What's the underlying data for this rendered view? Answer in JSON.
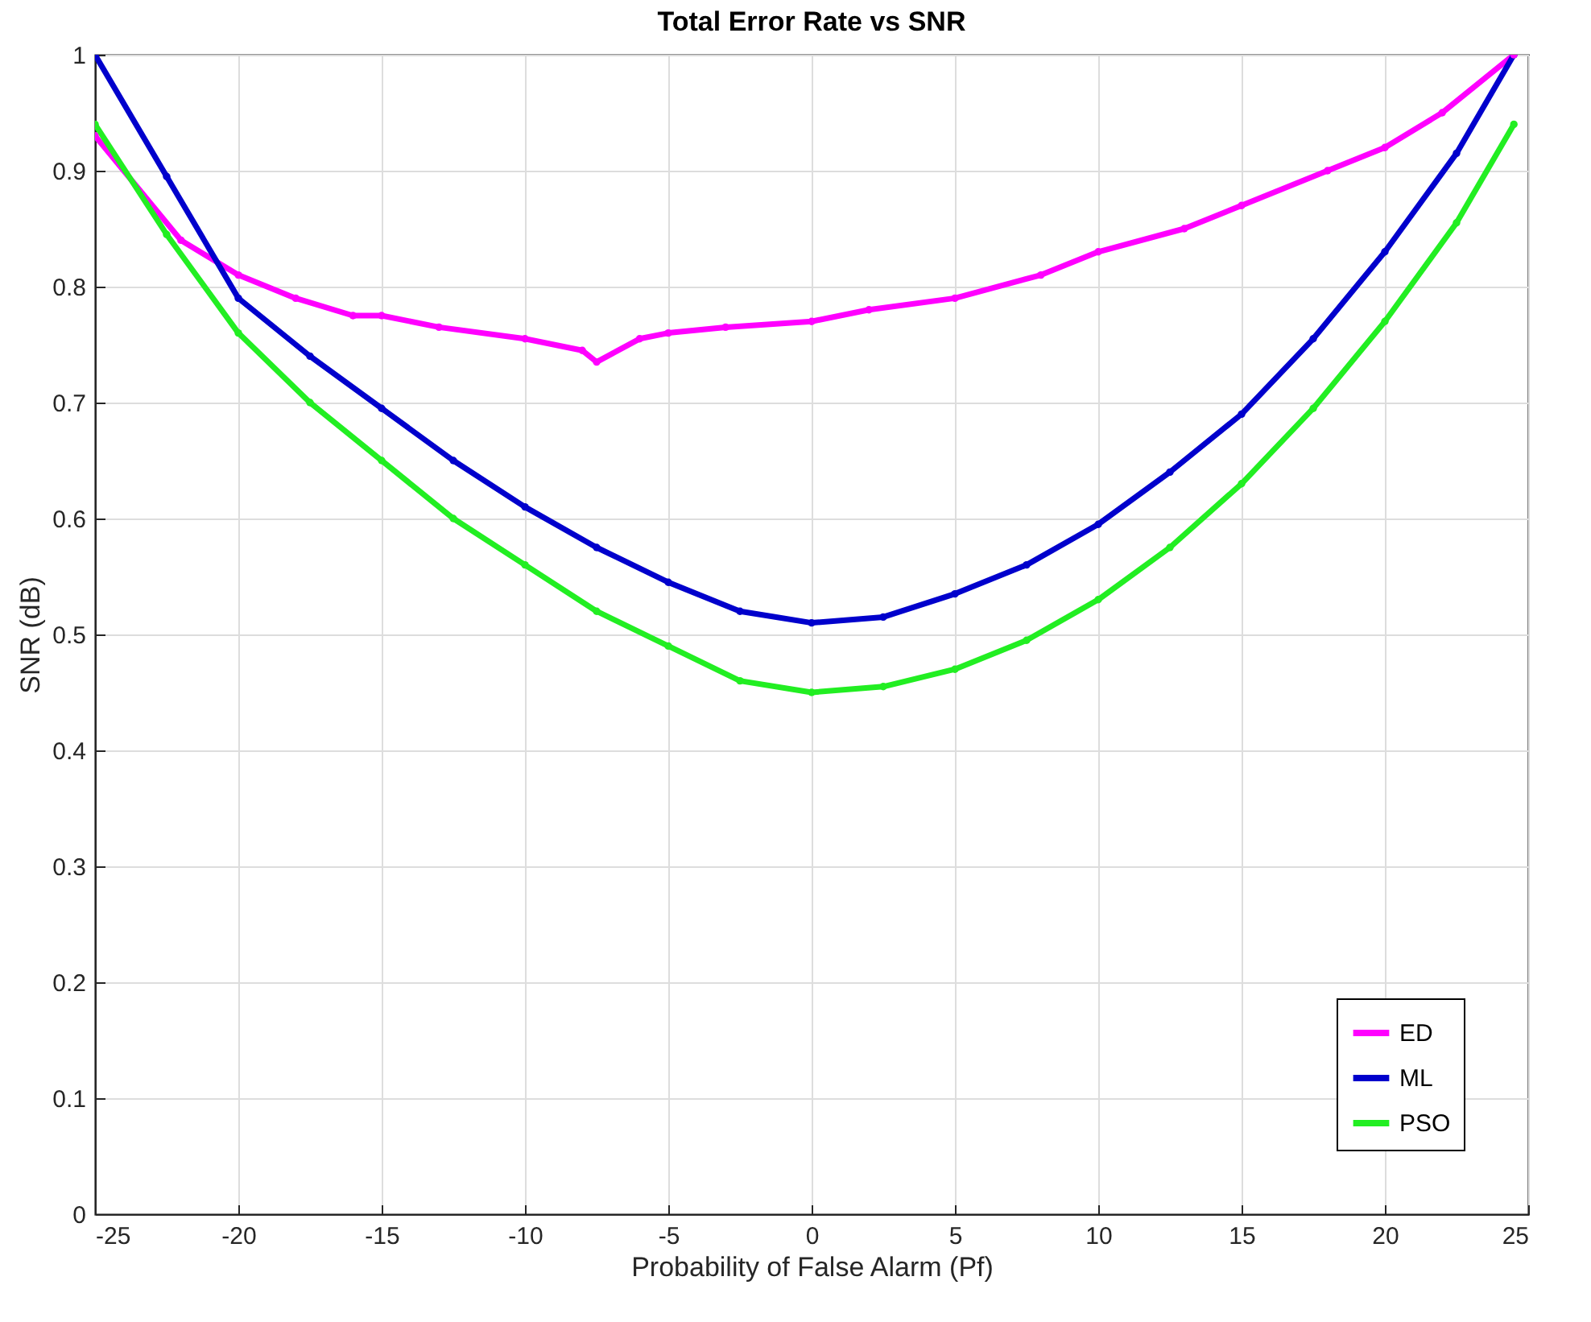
{
  "chart_data": {
    "type": "line",
    "title": "Total Error Rate vs SNR",
    "xlabel": "Probability of False Alarm (Pf)",
    "ylabel": "SNR (dB)",
    "xlim": [
      -25,
      25
    ],
    "xticks": [
      -25,
      -20,
      -15,
      -10,
      -5,
      0,
      5,
      10,
      15,
      20,
      25
    ],
    "ylim": [
      0,
      1
    ],
    "yticks": [
      0,
      0.1,
      0.2,
      0.3,
      0.4,
      0.5,
      0.6,
      0.7,
      0.8,
      0.9,
      1
    ],
    "grid": true,
    "legend": "bottom right",
    "marker": "circle",
    "line_style": "solid",
    "series": [
      {
        "name": "ED",
        "color": "#ff00ff",
        "x": [
          -25,
          -22,
          -20,
          -18,
          -16,
          -15,
          -13,
          -10,
          -8,
          -7.5,
          -6,
          -5,
          -3,
          0,
          2,
          5,
          8,
          10,
          13,
          15,
          18,
          20,
          22,
          24.5
        ],
        "values": [
          0.93,
          0.84,
          0.81,
          0.79,
          0.775,
          0.775,
          0.765,
          0.755,
          0.745,
          0.735,
          0.755,
          0.76,
          0.765,
          0.77,
          0.78,
          0.79,
          0.81,
          0.83,
          0.85,
          0.87,
          0.9,
          0.92,
          0.95,
          1.0
        ]
      },
      {
        "name": "ML",
        "color": "#0000cc",
        "x": [
          -25,
          -22.5,
          -20,
          -17.5,
          -15,
          -12.5,
          -10,
          -7.5,
          -5,
          -2.5,
          0,
          2.5,
          5,
          7.5,
          10,
          12.5,
          15,
          17.5,
          20,
          22.5,
          24.5
        ],
        "values": [
          1.0,
          0.895,
          0.79,
          0.74,
          0.695,
          0.65,
          0.61,
          0.575,
          0.545,
          0.52,
          0.51,
          0.515,
          0.535,
          0.56,
          0.595,
          0.64,
          0.69,
          0.755,
          0.83,
          0.915,
          1.0
        ]
      },
      {
        "name": "PSO",
        "color": "#22ee22",
        "x": [
          -25,
          -22.5,
          -20,
          -17.5,
          -15,
          -12.5,
          -10,
          -7.5,
          -5,
          -2.5,
          0,
          2.5,
          5,
          7.5,
          10,
          12.5,
          15,
          17.5,
          20,
          22.5,
          24.5
        ],
        "values": [
          0.94,
          0.845,
          0.76,
          0.7,
          0.65,
          0.6,
          0.56,
          0.52,
          0.49,
          0.46,
          0.45,
          0.455,
          0.47,
          0.495,
          0.53,
          0.575,
          0.63,
          0.695,
          0.77,
          0.855,
          0.94
        ]
      }
    ]
  }
}
